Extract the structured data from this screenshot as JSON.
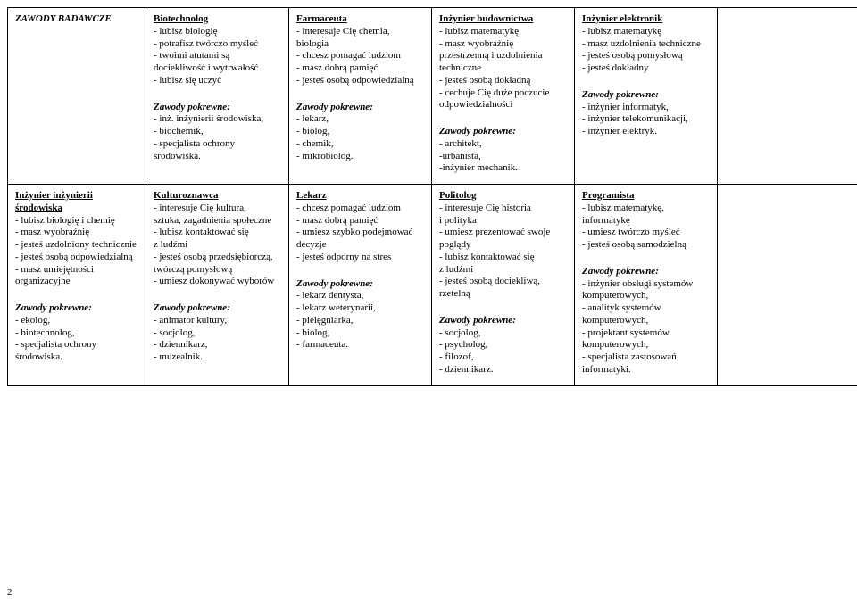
{
  "pageNumber": "2",
  "header": {
    "title": "ZAWODY BADAWCZE"
  },
  "row1": {
    "c1": {
      "name": "Biotechnolog",
      "l1": "- lubisz biologię",
      "l2": "- potrafisz twórczo myśleć",
      "l3": "- twoimi atutami są",
      "l4": "dociekliwość i wytrwałość",
      "l5": "- lubisz się uczyć"
    },
    "c2": {
      "name": "Farmaceuta",
      "l1": "- interesuje Cię chemia, biologia",
      "l2": "- chcesz pomagać ludziom",
      "l3": "- masz dobrą pamięć",
      "l4": "- jesteś osobą odpowiedzialną"
    },
    "c3": {
      "name": "Inżynier budownictwa",
      "l1": "- lubisz matematykę",
      "l2": "- masz wyobraźnię",
      "l3": "przestrzenną i uzdolnienia",
      "l4": "techniczne",
      "l5": "- jesteś osobą dokładną",
      "l6": "- cechuje Cię duże poczucie",
      "l7": "odpowiedzialności"
    },
    "c4": {
      "name": "Inżynier elektronik",
      "l1": "- lubisz matematykę",
      "l2": "- masz uzdolnienia techniczne",
      "l3": "- jesteś osobą pomysłową",
      "l4": "- jesteś dokładny"
    }
  },
  "row1zp": {
    "h": "Zawody pokrewne:",
    "c1": {
      "l1": "- inż. inżynierii środowiska,",
      "l2": "- biochemik,",
      "l3": "- specjalista ochrony",
      "l4": "środowiska."
    },
    "c2": {
      "l1": "- lekarz,",
      "l2": "- biolog,",
      "l3": "- chemik,",
      "l4": "- mikrobiolog."
    },
    "c3": {
      "l1": "- architekt,",
      "l2": "-urbanista,",
      "l3": "-inżynier mechanik."
    },
    "c4": {
      "l1": "- inżynier informatyk,",
      "l2": "- inżynier telekomunikacji,",
      "l3": "-  inżynier elektryk."
    }
  },
  "row2": {
    "c0": {
      "name": "Inżynier inżynierii środowiska",
      "l1": "- lubisz biologię  i chemię",
      "l2": "- masz wyobraźnię",
      "l3": "- jesteś uzdolniony technicznie",
      "l4": "- jesteś osobą odpowiedzialną",
      "l5": "- masz umiejętności organizacyjne"
    },
    "c1": {
      "name": "Kulturoznawca",
      "l1": "- interesuje Cię kultura,",
      "l2": "sztuka, zagadnienia społeczne",
      "l3": "- lubisz kontaktować się",
      "l4": "z ludźmi",
      "l5": "- jesteś osobą przedsiębiorczą,",
      "l6": "twórczą pomysłową",
      "l7": "- umiesz dokonywać wyborów"
    },
    "c2": {
      "name": "Lekarz",
      "l1": "- chcesz pomagać ludziom",
      "l2": "- masz dobrą pamięć",
      "l3": "- umiesz szybko podejmować",
      "l4": "decyzje",
      "l5": "- jesteś odporny na stres"
    },
    "c3": {
      "name": "Politolog",
      "l1": "- interesuje Cię historia",
      "l2": "i polityka",
      "l3": "- umiesz prezentować swoje",
      "l4": "poglądy",
      "l5": "- lubisz kontaktować się",
      "l6": "z ludźmi",
      "l7": "- jesteś osobą dociekliwą,",
      "l8": "rzetelną"
    },
    "c4": {
      "name": "Programista",
      "l1": "- lubisz matematykę, informatykę",
      "l2": "- umiesz twórczo myśleć",
      "l3": "- jesteś osobą samodzielną"
    }
  },
  "row2zp": {
    "h": "Zawody pokrewne:",
    "c0": {
      "l1": "- ekolog,",
      "l2": "- biotechnolog,",
      "l3": "- specjalista ochrony środowiska."
    },
    "c1": {
      "l1": "- animator kultury,",
      "l2": "- socjolog,",
      "l3": "- dziennikarz,",
      "l4": "- muzealnik."
    },
    "c2": {
      "l1": "- lekarz dentysta,",
      "l2": "- lekarz weterynarii,",
      "l3": "- pielęgniarka,",
      "l4": "- biolog,",
      "l5": "- farmaceuta."
    },
    "c3": {
      "l1": "- socjolog,",
      "l2": "- psycholog,",
      "l3": "- filozof,",
      "l4": "- dziennikarz."
    },
    "c4": {
      "l1": "- inżynier obsługi systemów",
      "l2": "komputerowych,",
      "l3": "- analityk systemów",
      "l4": "komputerowych,",
      "l5": "  - projektant systemów",
      "l6": "komputerowych,",
      "l7": "- specjalista zastosowań",
      "l8": "informatyki."
    }
  }
}
